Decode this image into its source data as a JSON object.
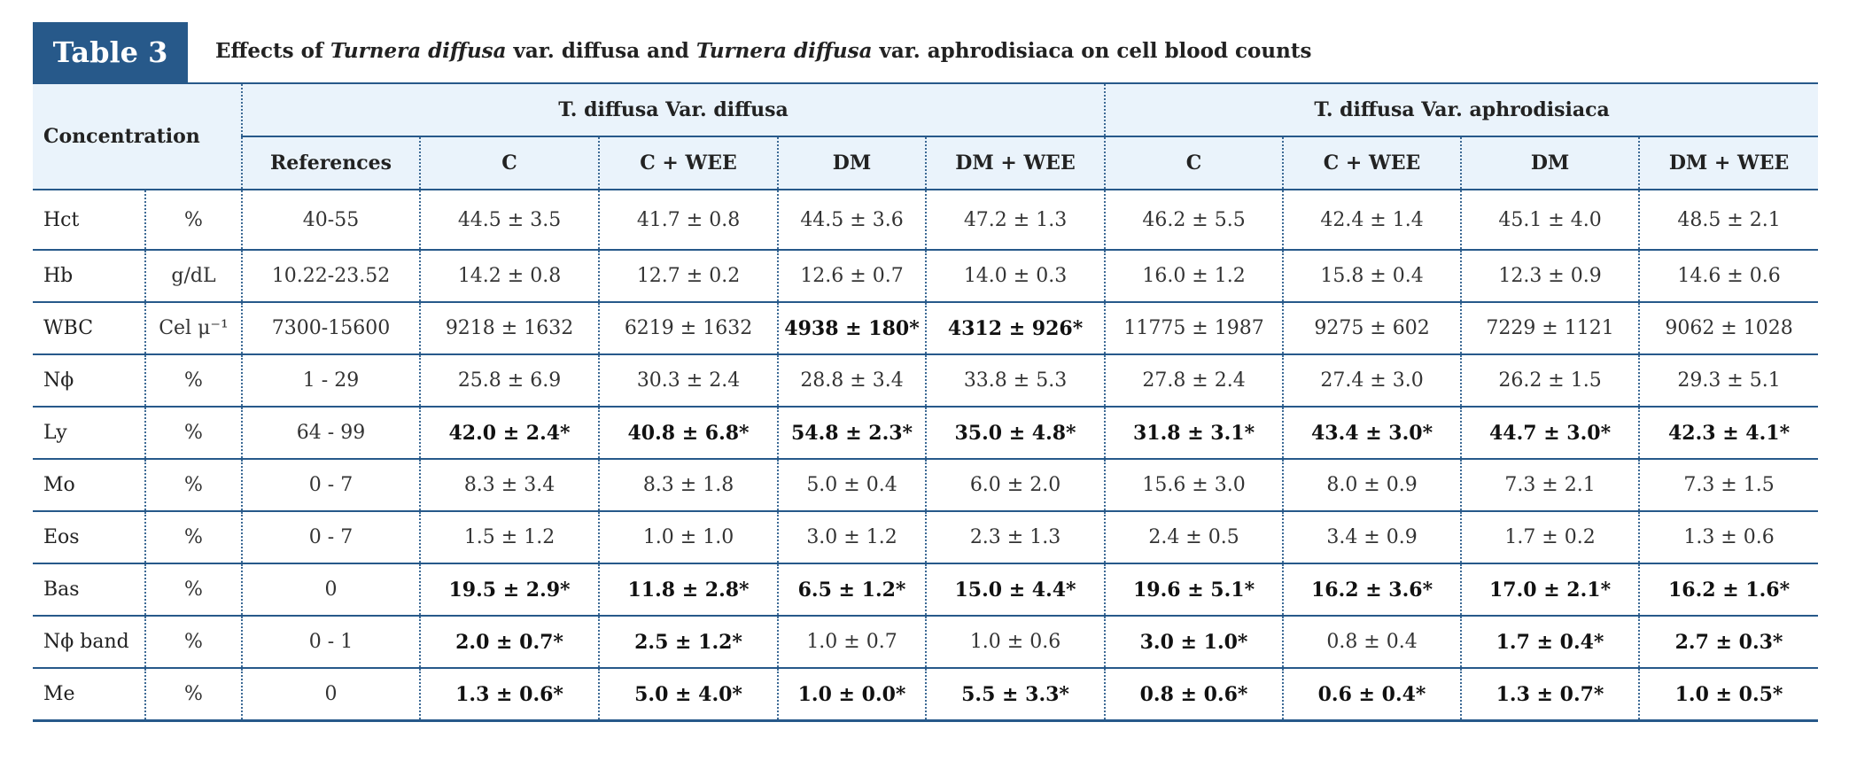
{
  "title_label": "Table 3",
  "caption": [
    "Effects of ",
    "Turnera diffusa",
    " var. diffusa and ",
    "Turnera diffusa",
    " var. aphrodisiaca on cell blood counts"
  ],
  "table": {
    "header": {
      "concentration": "Concentration",
      "groups": [
        "T. diffusa Var. diffusa",
        "T. diffusa Var. aphrodisiaca"
      ],
      "columns": [
        "References",
        "C",
        "C + WEE",
        "DM",
        "DM + WEE",
        "C",
        "C + WEE",
        "DM",
        "DM + WEE"
      ]
    },
    "rows": [
      [
        "Hct",
        "%",
        "40-55",
        "44.5 ± 3.5",
        "41.7 ± 0.8",
        "44.5 ± 3.6",
        "47.2 ± 1.3",
        "46.2 ± 5.5",
        "42.4 ± 1.4",
        "45.1 ± 4.0",
        "48.5 ± 2.1"
      ],
      [
        "Hb",
        "g/dL",
        "10.22-23.52",
        "14.2 ± 0.8",
        "12.7 ± 0.2",
        "12.6 ± 0.7",
        "14.0 ± 0.3",
        "16.0 ± 1.2",
        "15.8 ± 0.4",
        "12.3 ± 0.9",
        "14.6 ± 0.6"
      ],
      [
        "WBC",
        "Cel μ⁻¹",
        "7300-15600",
        "9218 ± 1632",
        "6219 ± 1632",
        "4938 ± 180*",
        "4312 ± 926*",
        "11775 ± 1987",
        "9275 ± 602",
        "7229 ± 1121",
        "9062 ± 1028"
      ],
      [
        "Nϕ",
        "%",
        "1 - 29",
        "25.8 ± 6.9",
        "30.3 ± 2.4",
        "28.8 ± 3.4",
        "33.8 ± 5.3",
        "27.8 ± 2.4",
        "27.4 ± 3.0",
        "26.2 ± 1.5",
        "29.3 ± 5.1"
      ],
      [
        "Ly",
        "%",
        "64 - 99",
        "42.0 ± 2.4*",
        "40.8 ± 6.8*",
        "54.8 ± 2.3*",
        "35.0 ± 4.8*",
        "31.8 ± 3.1*",
        "43.4 ± 3.0*",
        "44.7 ± 3.0*",
        "42.3 ± 4.1*"
      ],
      [
        "Mo",
        "%",
        "0 - 7",
        "8.3 ± 3.4",
        "8.3 ± 1.8",
        "5.0 ± 0.4",
        "6.0 ± 2.0",
        "15.6 ± 3.0",
        "8.0 ± 0.9",
        "7.3 ± 2.1",
        "7.3 ± 1.5"
      ],
      [
        "Eos",
        "%",
        "0 - 7",
        "1.5 ± 1.2",
        "1.0 ± 1.0",
        "3.0 ± 1.2",
        "2.3 ± 1.3",
        "2.4 ± 0.5",
        "3.4 ± 0.9",
        "1.7 ± 0.2",
        "1.3 ± 0.6"
      ],
      [
        "Bas",
        "%",
        "0",
        "19.5 ± 2.9*",
        "11.8 ± 2.8*",
        "6.5 ± 1.2*",
        "15.0 ± 4.4*",
        "19.6 ± 5.1*",
        "16.2 ± 3.6*",
        "17.0 ± 2.1*",
        "16.2 ± 1.6*"
      ],
      [
        "Nϕ band",
        "%",
        "0 - 1",
        "2.0 ± 0.7*",
        "2.5 ± 1.2*",
        "1.0 ± 0.7",
        "1.0 ± 0.6",
        "3.0 ± 1.0*",
        "0.8 ± 0.4",
        "1.7 ± 0.4*",
        "2.7 ± 0.3*"
      ],
      [
        "Me",
        "%",
        "0",
        "1.3 ± 0.6*",
        "5.0 ± 4.0*",
        "1.0 ± 0.0*",
        "5.5 ± 3.3*",
        "0.8 ± 0.6*",
        "0.6 ± 0.4*",
        "1.3 ± 0.7*",
        "1.0 ± 0.5*"
      ]
    ]
  }
}
